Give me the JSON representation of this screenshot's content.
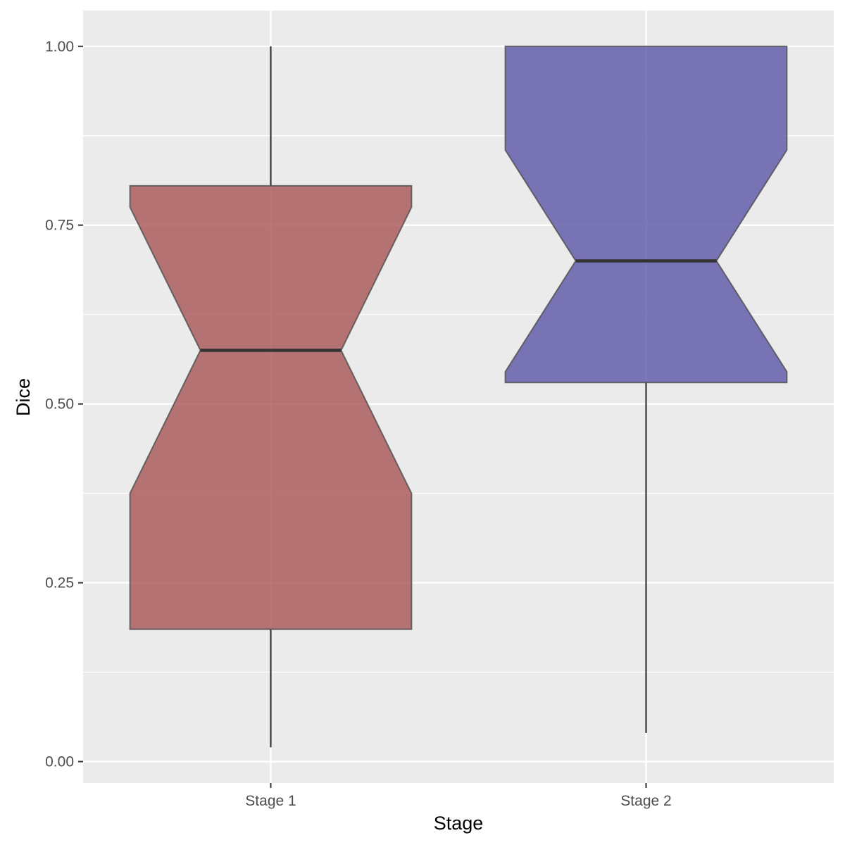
{
  "chart_data": {
    "type": "boxplot",
    "notched": true,
    "title": "",
    "xlabel": "Stage",
    "ylabel": "Dice",
    "ylim": [
      -0.03,
      1.05
    ],
    "yticks": [
      0.0,
      0.25,
      0.5,
      0.75,
      1.0
    ],
    "ytick_labels": [
      "0.00",
      "0.25",
      "0.50",
      "0.75",
      "1.00"
    ],
    "yminor": [
      0.125,
      0.375,
      0.625,
      0.875
    ],
    "grid": true,
    "categories": [
      "Stage 1",
      "Stage 2"
    ],
    "boxes": [
      {
        "category": "Stage 1",
        "whisker_low": 0.02,
        "q1": 0.185,
        "notch_low": 0.375,
        "median": 0.575,
        "notch_high": 0.775,
        "q3": 0.805,
        "whisker_high": 1.0,
        "color": "#a65454"
      },
      {
        "category": "Stage 2",
        "whisker_low": 0.04,
        "q1": 0.53,
        "notch_low": 0.545,
        "median": 0.7,
        "notch_high": 0.855,
        "q3": 1.0,
        "whisker_high": 1.0,
        "color": "#5a55a6"
      }
    ],
    "colors": {
      "panel": "#ebebeb",
      "grid": "#ffffff",
      "box_outline": "#4d4d4d",
      "median": "#333333"
    }
  }
}
